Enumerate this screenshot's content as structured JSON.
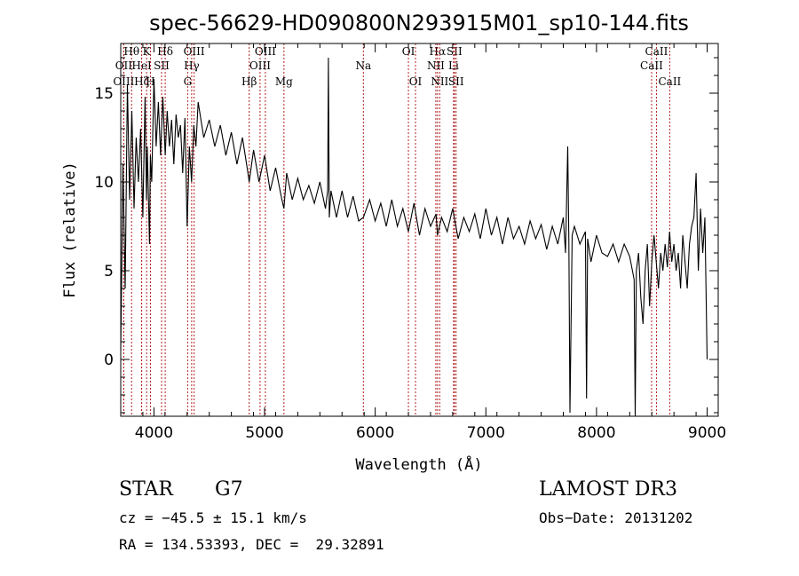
{
  "chart_data": {
    "type": "line",
    "title": "spec-56629-HD090800N293915M01_sp10-144.fits",
    "xlabel": "Wavelength (Å)",
    "ylabel": "Flux (relative)",
    "xlim": [
      3700,
      9100
    ],
    "ylim": [
      -3.2,
      17.8
    ],
    "xticks": [
      4000,
      5000,
      6000,
      7000,
      8000,
      9000
    ],
    "xtick_labels": [
      "4000",
      "5000",
      "6000",
      "7000",
      "8000",
      "9000"
    ],
    "yticks": [
      0,
      5,
      10,
      15
    ],
    "ytick_labels": [
      "0",
      "5",
      "10",
      "15"
    ],
    "grid": false,
    "series": [
      {
        "name": "flux",
        "x": [
          3700,
          3720,
          3740,
          3760,
          3780,
          3800,
          3820,
          3840,
          3860,
          3880,
          3900,
          3920,
          3933,
          3940,
          3960,
          3968,
          3980,
          4000,
          4020,
          4040,
          4060,
          4080,
          4102,
          4120,
          4140,
          4160,
          4180,
          4200,
          4220,
          4240,
          4260,
          4280,
          4300,
          4320,
          4340,
          4360,
          4380,
          4400,
          4450,
          4500,
          4550,
          4600,
          4650,
          4700,
          4750,
          4800,
          4850,
          4861,
          4900,
          4950,
          5000,
          5050,
          5100,
          5150,
          5175,
          5200,
          5250,
          5300,
          5350,
          5400,
          5450,
          5500,
          5550,
          5570,
          5577,
          5585,
          5600,
          5650,
          5700,
          5750,
          5800,
          5850,
          5893,
          5950,
          6000,
          6050,
          6100,
          6150,
          6200,
          6250,
          6300,
          6350,
          6400,
          6450,
          6500,
          6550,
          6563,
          6600,
          6650,
          6700,
          6750,
          6800,
          6850,
          6900,
          6950,
          7000,
          7050,
          7100,
          7150,
          7200,
          7250,
          7300,
          7350,
          7400,
          7450,
          7500,
          7550,
          7600,
          7650,
          7700,
          7720,
          7740,
          7750,
          7760,
          7780,
          7800,
          7850,
          7900,
          7910,
          7920,
          7950,
          8000,
          8050,
          8100,
          8150,
          8200,
          8250,
          8300,
          8340,
          8350,
          8360,
          8380,
          8400,
          8420,
          8440,
          8460,
          8480,
          8500,
          8520,
          8540,
          8560,
          8580,
          8600,
          8620,
          8640,
          8660,
          8680,
          8700,
          8720,
          8740,
          8760,
          8780,
          8800,
          8820,
          8840,
          8860,
          8880,
          8900,
          8920,
          8940,
          8960,
          8980,
          9000
        ],
        "values": [
          0.5,
          11.0,
          4.0,
          15.5,
          9.0,
          14.0,
          8.5,
          12.5,
          10.0,
          13.0,
          8.0,
          14.8,
          9.0,
          12.0,
          6.5,
          11.5,
          10.0,
          15.8,
          12.0,
          14.5,
          11.5,
          14.8,
          11.5,
          14.0,
          12.0,
          13.5,
          11.0,
          13.8,
          12.5,
          13.2,
          10.5,
          13.6,
          7.5,
          12.0,
          10.0,
          13.2,
          12.0,
          14.5,
          12.5,
          13.5,
          12.0,
          13.2,
          11.5,
          12.8,
          11.0,
          12.5,
          10.5,
          10.0,
          11.8,
          10.0,
          11.5,
          9.5,
          10.8,
          9.2,
          8.5,
          10.5,
          9.0,
          10.2,
          9.0,
          9.8,
          8.8,
          10.0,
          8.5,
          9.5,
          17.0,
          8.0,
          9.5,
          8.0,
          9.5,
          8.0,
          9.2,
          7.8,
          8.0,
          9.0,
          7.8,
          8.8,
          7.5,
          9.0,
          7.5,
          8.5,
          7.2,
          8.8,
          7.0,
          8.5,
          7.5,
          8.2,
          7.0,
          8.0,
          7.2,
          8.5,
          6.8,
          8.0,
          7.2,
          8.2,
          6.8,
          8.5,
          7.0,
          8.0,
          6.5,
          8.0,
          6.8,
          7.5,
          6.5,
          7.8,
          6.8,
          7.6,
          6.2,
          7.5,
          6.5,
          8.0,
          6.0,
          12.0,
          6.5,
          -3.0,
          7.0,
          7.5,
          6.5,
          7.2,
          -2.2,
          6.8,
          5.5,
          7.0,
          6.0,
          5.8,
          6.5,
          5.5,
          6.5,
          5.8,
          4.5,
          -3.2,
          5.0,
          6.0,
          3.5,
          2.0,
          5.0,
          6.5,
          3.0,
          5.5,
          7.0,
          5.5,
          4.0,
          6.0,
          5.0,
          6.5,
          5.2,
          7.2,
          5.5,
          6.5,
          5.0,
          6.0,
          4.0,
          7.0,
          5.5,
          4.0,
          6.5,
          7.5,
          8.0,
          10.5,
          5.0,
          8.5,
          6.0,
          8.0,
          0.0
        ]
      }
    ],
    "line_markers": [
      {
        "label": "Hθ",
        "x": 3798,
        "row": 1
      },
      {
        "label": "OII",
        "x": 3727,
        "row": 2
      },
      {
        "label": "OIII",
        "x": 3727,
        "row": 3
      },
      {
        "label": "K",
        "x": 3934,
        "row": 1
      },
      {
        "label": "HeI",
        "x": 3889,
        "row": 2
      },
      {
        "label": "Hζ",
        "x": 3889,
        "row": 3
      },
      {
        "label": "H",
        "x": 3969,
        "row": 3
      },
      {
        "label": "Hδ",
        "x": 4102,
        "row": 1
      },
      {
        "label": "SII",
        "x": 4069,
        "row": 2
      },
      {
        "label": "OIII",
        "x": 4363,
        "row": 1
      },
      {
        "label": "Hγ",
        "x": 4341,
        "row": 2
      },
      {
        "label": "G",
        "x": 4305,
        "row": 3
      },
      {
        "label": "OIII",
        "x": 5007,
        "row": 1
      },
      {
        "label": "OIII",
        "x": 4959,
        "row": 2
      },
      {
        "label": "Hβ",
        "x": 4861,
        "row": 3
      },
      {
        "label": "Mg",
        "x": 5175,
        "row": 3
      },
      {
        "label": "Na",
        "x": 5893,
        "row": 2
      },
      {
        "label": "OI",
        "x": 6300,
        "row": 1
      },
      {
        "label": "OI",
        "x": 6364,
        "row": 3
      },
      {
        "label": "Hα",
        "x": 6563,
        "row": 1
      },
      {
        "label": "SII",
        "x": 6716,
        "row": 1
      },
      {
        "label": "NII",
        "x": 6548,
        "row": 2
      },
      {
        "label": "Li",
        "x": 6708,
        "row": 2
      },
      {
        "label": "NII",
        "x": 6583,
        "row": 3
      },
      {
        "label": "SII",
        "x": 6731,
        "row": 3
      },
      {
        "label": "CaII",
        "x": 8542,
        "row": 1
      },
      {
        "label": "CaII",
        "x": 8498,
        "row": 2
      },
      {
        "label": "CaII",
        "x": 8662,
        "row": 3
      }
    ]
  },
  "info": {
    "object_class": "STAR",
    "subclass": "G7",
    "survey": "LAMOST DR3",
    "cz": "cz = −45.5 ± 15.1 km/s",
    "obs_date": "Obs−Date: 20131202",
    "coords": "RA = 134.53393, DEC =  29.32891"
  }
}
